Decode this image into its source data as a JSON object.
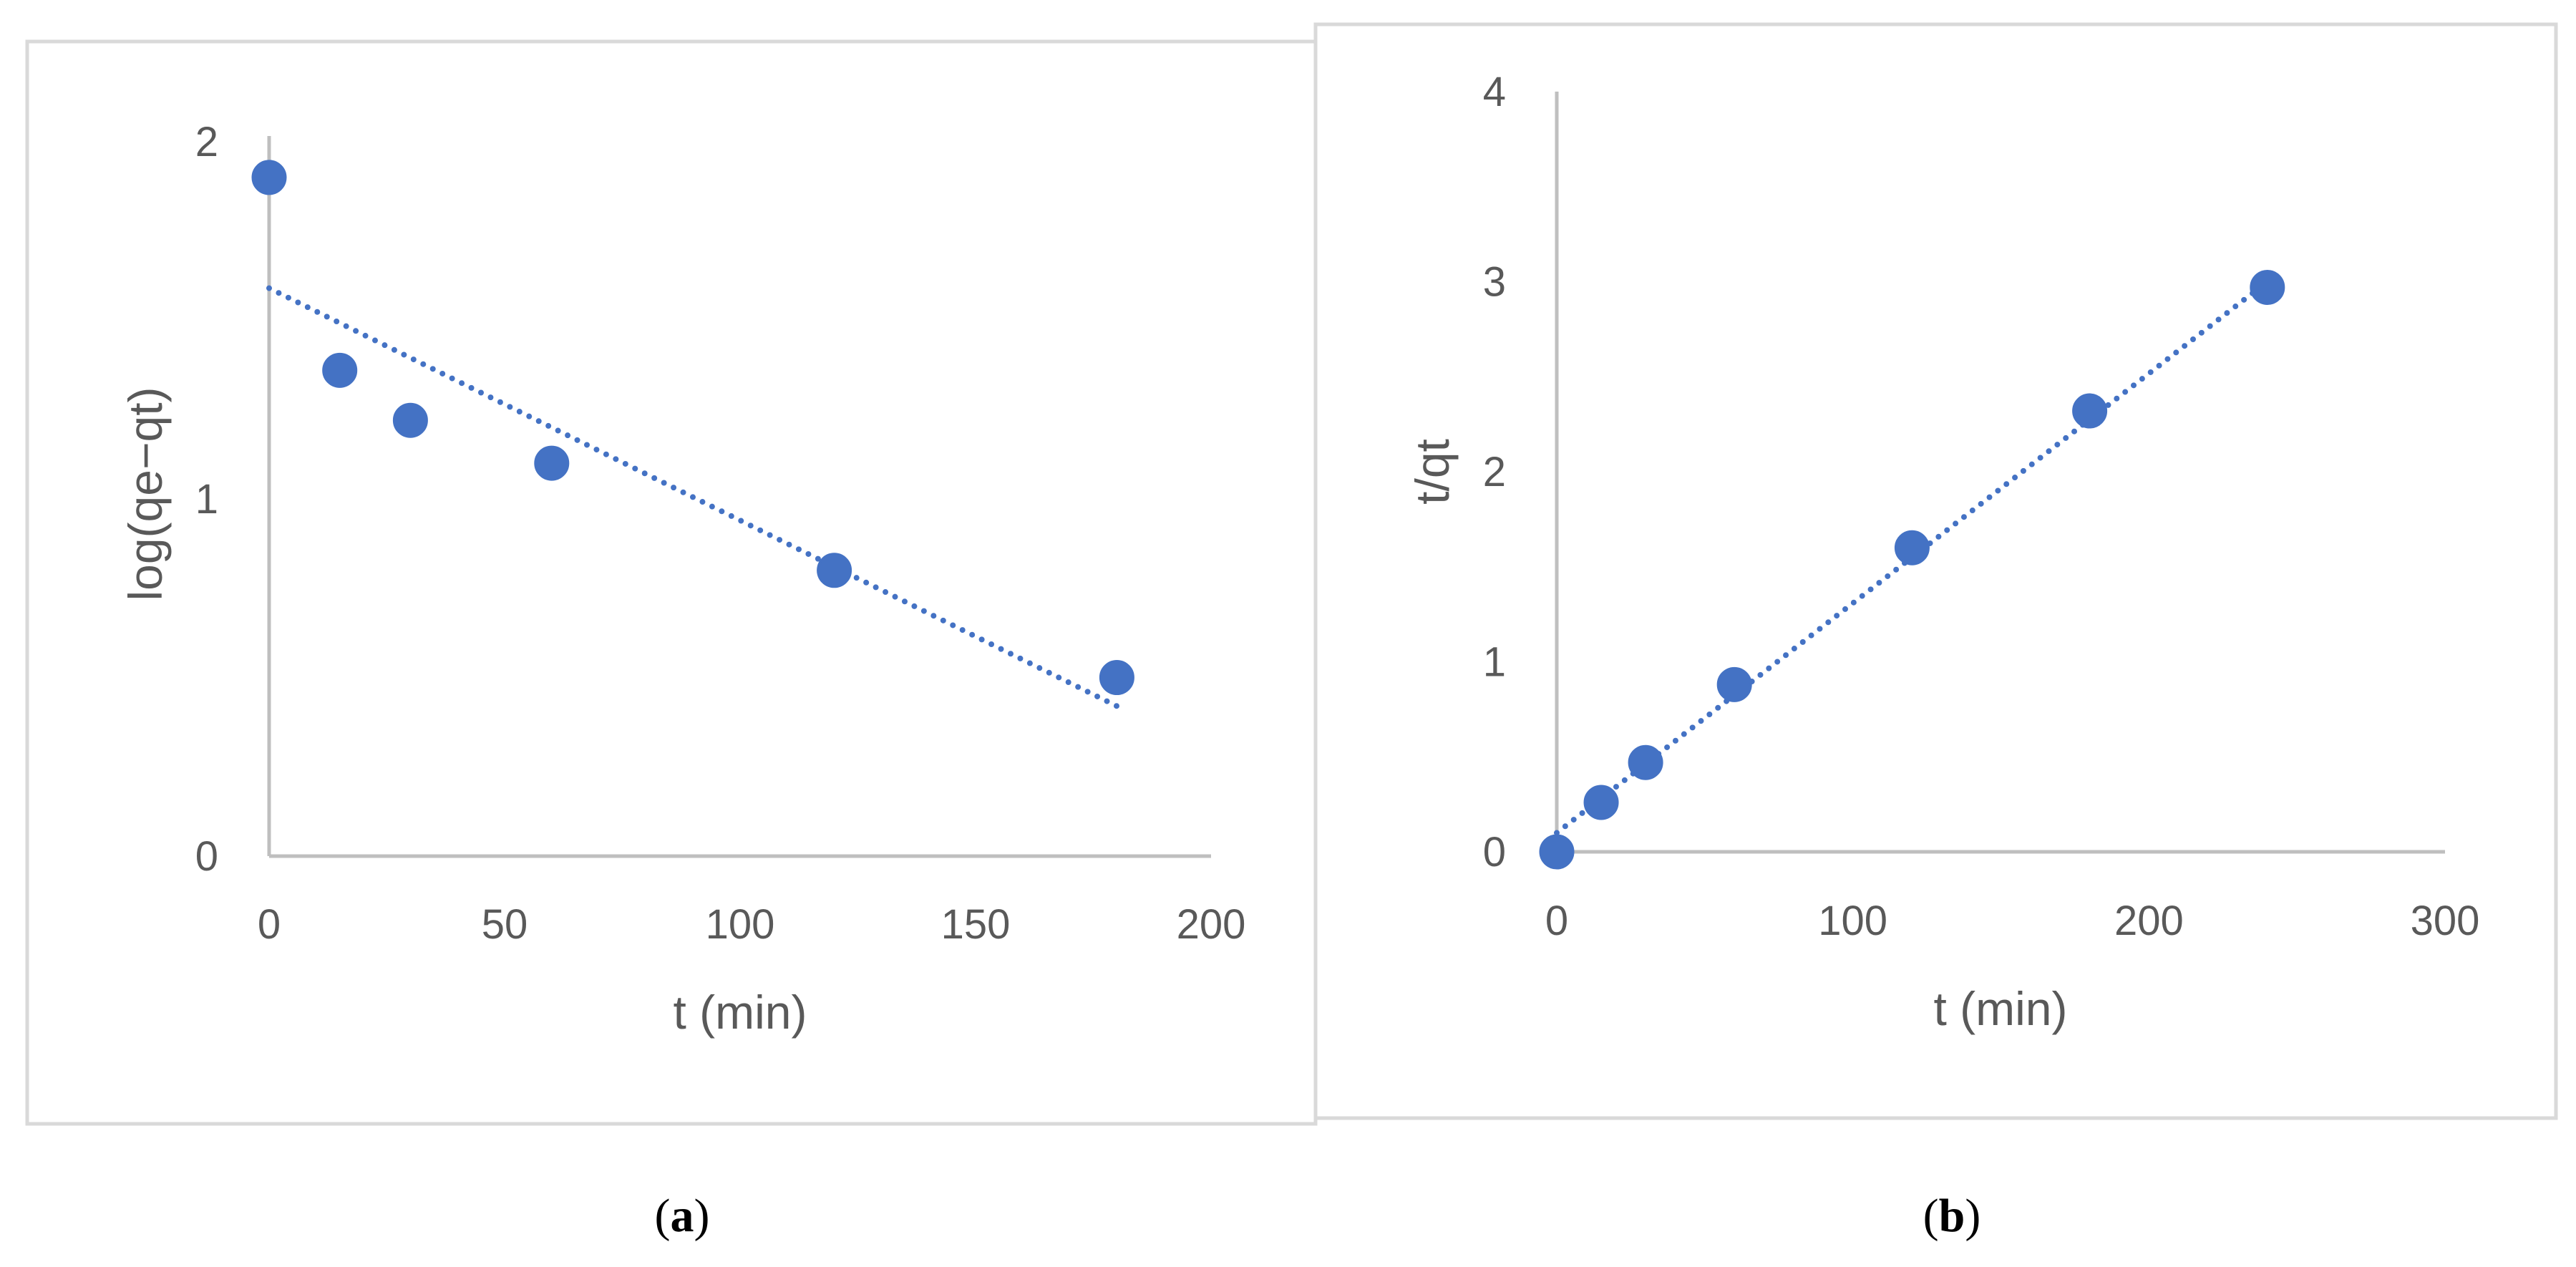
{
  "chart_data": [
    {
      "type": "scatter",
      "panel_label": "a",
      "title": "",
      "xlabel": "t (min)",
      "ylabel": "log(qe−qt)",
      "xlim": [
        0,
        200
      ],
      "ylim": [
        0,
        2
      ],
      "xticks": [
        "0",
        "50",
        "100",
        "150",
        "200"
      ],
      "yticks": [
        "0",
        "1",
        "2"
      ],
      "grid": false,
      "series": [
        {
          "name": "log(qe−qt)",
          "color": "#4472c4",
          "x": [
            0,
            15,
            30,
            60,
            120,
            180
          ],
          "y": [
            1.9,
            1.36,
            1.22,
            1.1,
            0.8,
            0.5
          ]
        }
      ],
      "trendline": {
        "style": "dotted",
        "x": [
          0,
          180
        ],
        "y": [
          1.59,
          0.42
        ]
      }
    },
    {
      "type": "scatter",
      "panel_label": "b",
      "title": "",
      "xlabel": "t (min)",
      "ylabel": "t/qt",
      "xlim": [
        0,
        300
      ],
      "ylim": [
        0,
        4
      ],
      "xticks": [
        "0",
        "100",
        "200",
        "300"
      ],
      "yticks": [
        "0",
        "1",
        "2",
        "3",
        "4"
      ],
      "grid": false,
      "series": [
        {
          "name": "t/qt",
          "color": "#4472c4",
          "x": [
            0,
            15,
            30,
            60,
            120,
            180,
            240
          ],
          "y": [
            0,
            0.26,
            0.47,
            0.88,
            1.6,
            2.32,
            2.97
          ]
        }
      ],
      "trendline": {
        "style": "dotted",
        "x": [
          0,
          240
        ],
        "y": [
          0.1,
          3.0
        ]
      }
    }
  ]
}
